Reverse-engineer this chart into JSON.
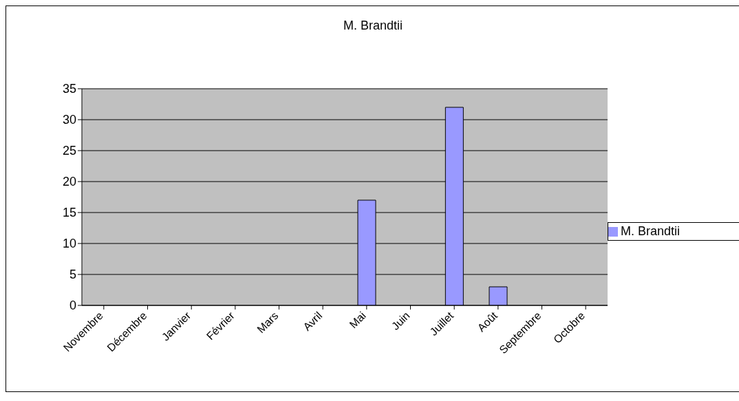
{
  "chart_data": {
    "type": "bar",
    "title": "M. Brandtii",
    "categories": [
      "Novembre",
      "Décembre",
      "Janvier",
      "Février",
      "Mars",
      "Avril",
      "Mai",
      "Juin",
      "Juillet",
      "Août",
      "Septembre",
      "Octobre"
    ],
    "series": [
      {
        "name": "M. Brandtii",
        "color": "#9999ff",
        "values": [
          0,
          0,
          0,
          0,
          0,
          0,
          17,
          0,
          32,
          3,
          0,
          0
        ]
      }
    ],
    "ylim": [
      0,
      35
    ],
    "yticks": [
      0,
      5,
      10,
      15,
      20,
      25,
      30,
      35
    ],
    "grid": "y",
    "legend": "right"
  }
}
